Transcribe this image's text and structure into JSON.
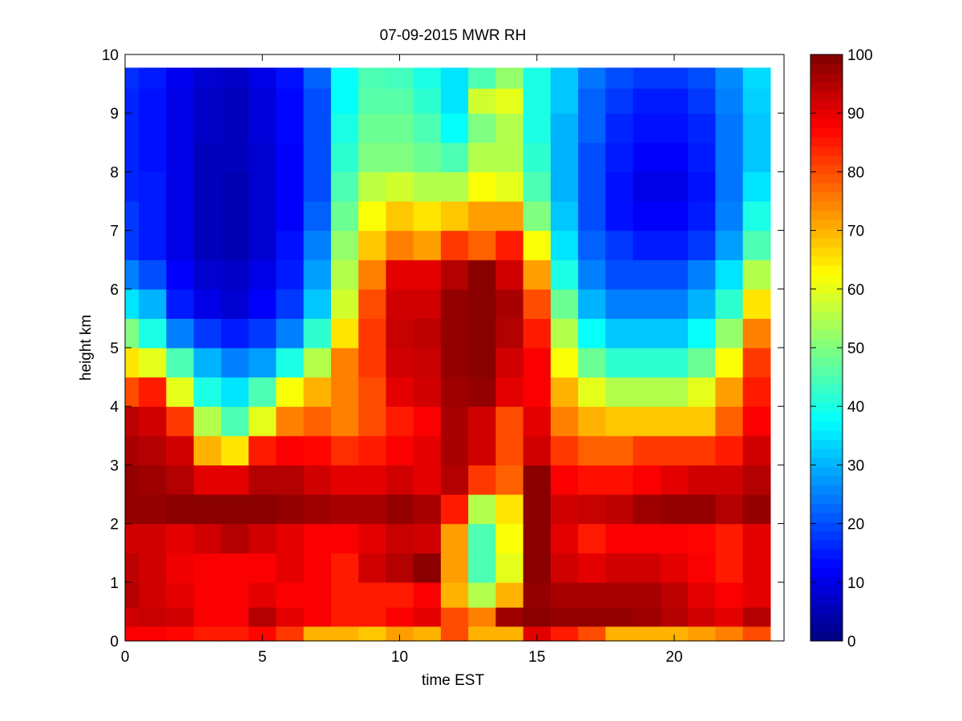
{
  "chart_data": {
    "type": "heatmap",
    "title": "07-09-2015 MWR RH",
    "xlabel": "time EST",
    "ylabel": "height km",
    "xlim": [
      0,
      24
    ],
    "ylim": [
      0,
      10
    ],
    "xticks": [
      "0",
      "5",
      "10",
      "15",
      "20"
    ],
    "yticks": [
      "0",
      "1",
      "2",
      "3",
      "4",
      "5",
      "6",
      "7",
      "8",
      "9",
      "10"
    ],
    "colormap": "jet",
    "colorbar": {
      "min": 0,
      "max": 100,
      "ticks": [
        "0",
        "10",
        "20",
        "30",
        "40",
        "50",
        "60",
        "70",
        "80",
        "90",
        "100"
      ]
    },
    "grid": false,
    "x": [
      0,
      1,
      2,
      3,
      4,
      5,
      6,
      7,
      8,
      9,
      10,
      11,
      12,
      13,
      14,
      15,
      16,
      17,
      18,
      19,
      20,
      21,
      22,
      23
    ],
    "y": [
      0.1,
      0.4,
      0.75,
      1.25,
      1.75,
      2.25,
      2.75,
      3.25,
      3.75,
      4.25,
      4.75,
      5.25,
      5.75,
      6.25,
      6.75,
      7.25,
      7.75,
      8.25,
      8.75,
      9.25,
      9.6
    ],
    "z": [
      [
        88,
        88,
        87,
        85,
        85,
        87,
        82,
        70,
        70,
        68,
        72,
        70,
        80,
        70,
        70,
        90,
        85,
        80,
        70,
        70,
        70,
        72,
        75,
        80
      ],
      [
        92,
        93,
        92,
        88,
        88,
        95,
        90,
        88,
        85,
        85,
        88,
        90,
        80,
        75,
        97,
        99,
        98,
        98,
        98,
        97,
        95,
        92,
        90,
        95
      ],
      [
        95,
        92,
        90,
        88,
        88,
        90,
        88,
        88,
        85,
        85,
        85,
        88,
        70,
        55,
        70,
        98,
        96,
        96,
        96,
        96,
        94,
        90,
        88,
        90
      ],
      [
        94,
        92,
        89,
        88,
        88,
        88,
        90,
        88,
        85,
        92,
        95,
        99,
        72,
        45,
        60,
        99,
        92,
        90,
        92,
        92,
        90,
        88,
        85,
        90
      ],
      [
        92,
        92,
        90,
        92,
        95,
        92,
        90,
        88,
        88,
        90,
        93,
        92,
        72,
        45,
        62,
        99,
        90,
        85,
        88,
        88,
        88,
        87,
        85,
        90
      ],
      [
        98,
        98,
        99,
        99,
        99,
        99,
        98,
        97,
        96,
        96,
        98,
        96,
        85,
        55,
        65,
        99,
        92,
        93,
        94,
        97,
        98,
        98,
        95,
        98
      ],
      [
        98,
        97,
        95,
        90,
        90,
        95,
        95,
        92,
        90,
        90,
        92,
        90,
        95,
        82,
        78,
        99,
        88,
        86,
        86,
        88,
        90,
        92,
        92,
        95
      ],
      [
        96,
        95,
        92,
        70,
        65,
        85,
        88,
        87,
        83,
        85,
        88,
        90,
        96,
        92,
        80,
        92,
        82,
        78,
        78,
        82,
        82,
        82,
        85,
        92
      ],
      [
        94,
        92,
        82,
        55,
        45,
        60,
        75,
        78,
        75,
        80,
        85,
        88,
        96,
        92,
        80,
        90,
        75,
        70,
        68,
        68,
        68,
        68,
        78,
        88
      ],
      [
        80,
        85,
        60,
        40,
        35,
        45,
        62,
        70,
        75,
        80,
        90,
        92,
        97,
        98,
        90,
        88,
        70,
        60,
        55,
        55,
        55,
        60,
        72,
        85
      ],
      [
        65,
        60,
        45,
        30,
        25,
        28,
        40,
        55,
        75,
        82,
        92,
        93,
        98,
        99,
        92,
        88,
        62,
        48,
        42,
        42,
        42,
        48,
        62,
        82
      ],
      [
        50,
        40,
        25,
        18,
        15,
        18,
        25,
        42,
        65,
        82,
        93,
        94,
        98,
        99,
        95,
        85,
        55,
        38,
        32,
        32,
        32,
        38,
        52,
        75
      ],
      [
        35,
        30,
        15,
        10,
        8,
        12,
        18,
        32,
        58,
        80,
        92,
        92,
        98,
        99,
        96,
        80,
        48,
        30,
        25,
        25,
        25,
        30,
        42,
        65
      ],
      [
        25,
        20,
        12,
        8,
        7,
        10,
        15,
        28,
        55,
        75,
        90,
        90,
        95,
        99,
        92,
        72,
        40,
        25,
        20,
        20,
        20,
        25,
        35,
        55
      ],
      [
        18,
        15,
        10,
        6,
        5,
        8,
        14,
        25,
        52,
        68,
        75,
        72,
        82,
        78,
        85,
        62,
        35,
        22,
        18,
        15,
        15,
        18,
        28,
        45
      ],
      [
        18,
        15,
        10,
        6,
        5,
        8,
        12,
        22,
        48,
        62,
        68,
        65,
        68,
        72,
        72,
        50,
        32,
        20,
        14,
        12,
        12,
        15,
        25,
        40
      ],
      [
        16,
        15,
        10,
        6,
        5,
        8,
        12,
        20,
        45,
        56,
        58,
        55,
        55,
        62,
        60,
        45,
        30,
        20,
        14,
        10,
        10,
        14,
        24,
        35
      ],
      [
        16,
        14,
        10,
        6,
        6,
        8,
        12,
        20,
        42,
        50,
        50,
        48,
        45,
        55,
        55,
        42,
        30,
        20,
        15,
        12,
        12,
        15,
        24,
        32
      ],
      [
        16,
        14,
        10,
        7,
        6,
        9,
        13,
        20,
        40,
        48,
        48,
        45,
        38,
        50,
        55,
        40,
        30,
        22,
        16,
        14,
        14,
        16,
        24,
        32
      ],
      [
        16,
        14,
        10,
        7,
        6,
        9,
        13,
        20,
        38,
        46,
        46,
        42,
        35,
        58,
        60,
        40,
        32,
        22,
        18,
        15,
        15,
        18,
        25,
        33
      ],
      [
        17,
        15,
        11,
        8,
        7,
        10,
        14,
        22,
        38,
        45,
        44,
        40,
        35,
        45,
        52,
        40,
        32,
        24,
        20,
        18,
        18,
        20,
        26,
        34
      ]
    ]
  }
}
